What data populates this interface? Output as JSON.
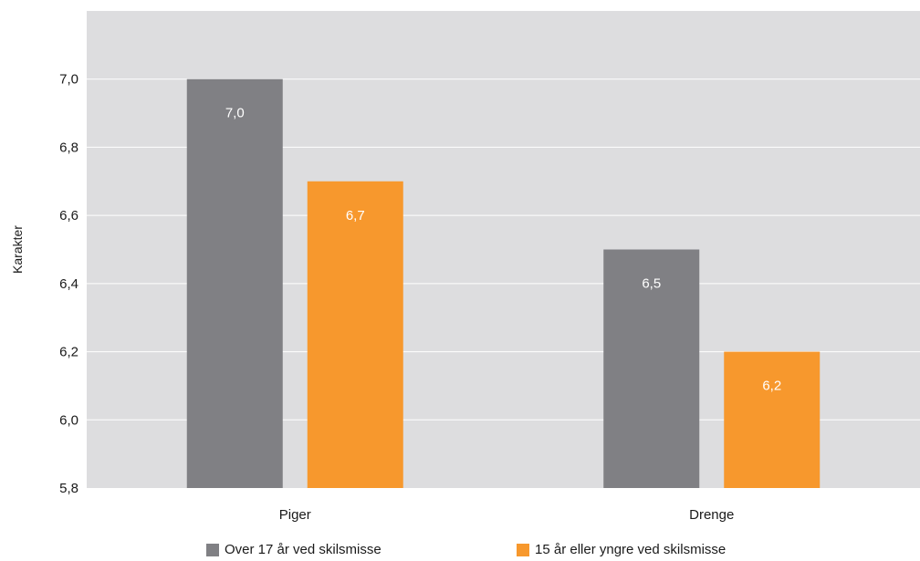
{
  "chart_data": {
    "type": "bar",
    "title": "",
    "xlabel": "",
    "ylabel": "Karakter",
    "categories": [
      "Piger",
      "Drenge"
    ],
    "series": [
      {
        "name": "Over 17 år ved skilsmisse",
        "values": [
          7.0,
          6.5
        ],
        "labels": [
          "7,0",
          "6,5"
        ],
        "color": "#808084"
      },
      {
        "name": "15 år eller yngre ved skilsmisse",
        "values": [
          6.7,
          6.2
        ],
        "labels": [
          "6,7",
          "6,2"
        ],
        "color": "#F7982D"
      }
    ],
    "ylim": [
      5.8,
      7.2
    ],
    "yticks": [
      5.8,
      6.0,
      6.2,
      6.4,
      6.6,
      6.8,
      7.0
    ],
    "ytick_labels": [
      "5,8",
      "6,0",
      "6,2",
      "6,4",
      "6,6",
      "6,8",
      "7,0"
    ],
    "grid": true,
    "legend_position": "bottom",
    "plot_background": "#DDDDDF",
    "grid_color": "#ffffff"
  }
}
